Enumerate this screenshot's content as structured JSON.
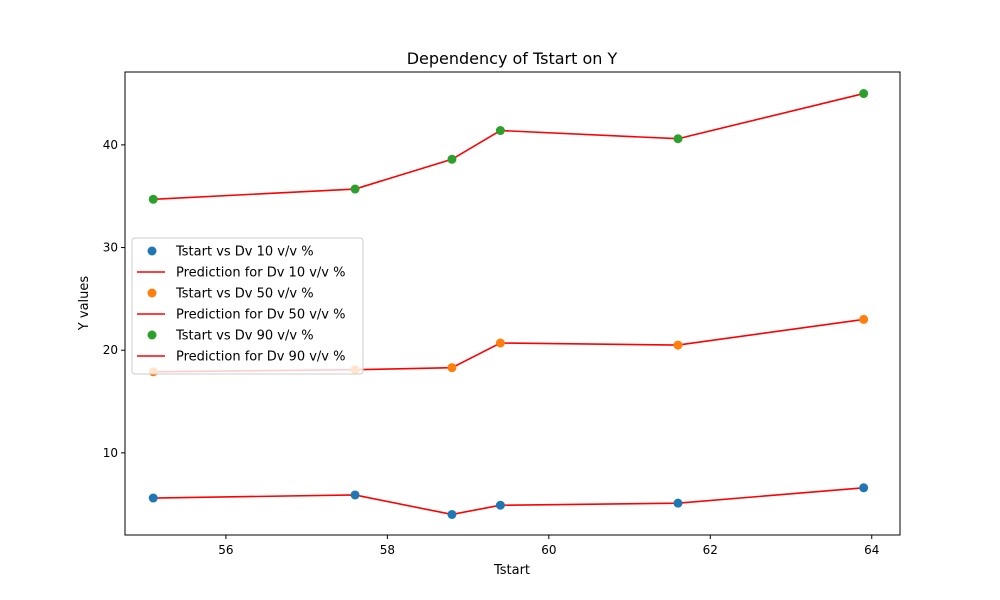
{
  "chart_data": {
    "type": "scatter",
    "title": "Dependency of Tstart on Y",
    "xlabel": "Tstart",
    "ylabel": "Y values",
    "xlim": [
      54.75,
      64.35
    ],
    "ylim": [
      2.0,
      47.1
    ],
    "xticks": [
      56,
      58,
      60,
      62,
      64
    ],
    "yticks": [
      10,
      20,
      30,
      40
    ],
    "grid": false,
    "legend_position": "center-left",
    "x": [
      55.1,
      57.6,
      58.8,
      59.4,
      61.6,
      63.9
    ],
    "series": [
      {
        "name": "Tstart vs Dv 10 v/v %",
        "kind": "scatter",
        "color": "#1f77b4",
        "values": [
          5.6,
          5.9,
          4.0,
          4.9,
          5.1,
          6.6
        ]
      },
      {
        "name": "Prediction for Dv 10 v/v %",
        "kind": "line",
        "color": "#ff0000",
        "values": [
          5.6,
          5.9,
          4.0,
          4.9,
          5.1,
          6.6
        ]
      },
      {
        "name": "Tstart vs Dv 50 v/v %",
        "kind": "scatter",
        "color": "#ff7f0e",
        "values": [
          17.9,
          18.1,
          18.3,
          20.7,
          20.5,
          23.0
        ]
      },
      {
        "name": "Prediction for Dv 50 v/v %",
        "kind": "line",
        "color": "#ff0000",
        "values": [
          17.9,
          18.1,
          18.3,
          20.7,
          20.5,
          23.0
        ]
      },
      {
        "name": "Tstart vs Dv 90 v/v %",
        "kind": "scatter",
        "color": "#2ca02c",
        "values": [
          34.7,
          35.7,
          38.6,
          41.4,
          40.6,
          45.0
        ]
      },
      {
        "name": "Prediction for Dv 90 v/v %",
        "kind": "line",
        "color": "#ff0000",
        "values": [
          34.7,
          35.7,
          38.6,
          41.4,
          40.6,
          45.0
        ]
      }
    ]
  }
}
